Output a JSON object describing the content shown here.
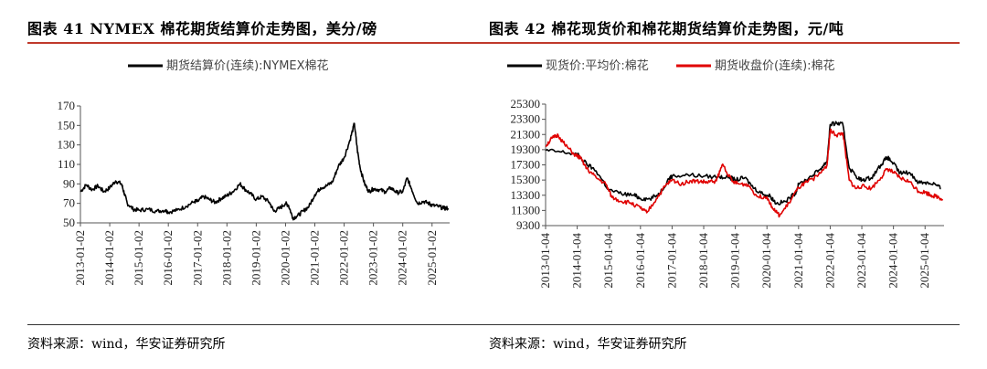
{
  "charts": [
    {
      "title": "图表 41 NYMEX 棉花期货结算价走势图，美分/磅",
      "source": "资料来源：wind，华安证券研究所"
    },
    {
      "title": "图表 42 棉花现货价和棉花期货结算价走势图，元/吨",
      "source": "资料来源：wind，华安证券研究所"
    }
  ],
  "chart_data": [
    {
      "type": "line",
      "title": "",
      "xlabel": "",
      "ylabel": "",
      "ylim": [
        50,
        170
      ],
      "yticks": [
        "170",
        "150",
        "130",
        "110",
        "90",
        "70",
        "50"
      ],
      "xticks": [
        "2013-01-02",
        "2014-01-02",
        "2015-01-02",
        "2016-01-02",
        "2017-01-02",
        "2018-01-02",
        "2019-01-02",
        "2020-01-02",
        "2021-01-02",
        "2022-01-02",
        "2023-01-02",
        "2024-01-02",
        "2025-01-02"
      ],
      "legend_position": "top",
      "series": [
        {
          "name": "期货结算价(连续):NYMEX棉花",
          "color": "#000000",
          "x": [
            2013.0,
            2013.2,
            2013.4,
            2013.6,
            2013.8,
            2014.0,
            2014.2,
            2014.4,
            2014.5,
            2014.6,
            2014.8,
            2015.0,
            2015.3,
            2015.6,
            2015.9,
            2016.0,
            2016.3,
            2016.6,
            2016.9,
            2017.0,
            2017.2,
            2017.4,
            2017.6,
            2017.8,
            2018.0,
            2018.2,
            2018.45,
            2018.6,
            2018.8,
            2019.0,
            2019.2,
            2019.45,
            2019.6,
            2019.8,
            2020.0,
            2020.1,
            2020.25,
            2020.4,
            2020.6,
            2020.8,
            2021.0,
            2021.2,
            2021.4,
            2021.6,
            2021.8,
            2022.0,
            2022.2,
            2022.35,
            2022.45,
            2022.55,
            2022.7,
            2022.85,
            2023.0,
            2023.2,
            2023.4,
            2023.6,
            2023.8,
            2024.0,
            2024.15,
            2024.3,
            2024.5,
            2024.7,
            2024.9,
            2025.0,
            2025.2,
            2025.4,
            2025.55
          ],
          "values": [
            82,
            89,
            84,
            88,
            82,
            86,
            93,
            90,
            80,
            70,
            64,
            63,
            64,
            62,
            63,
            61,
            63,
            67,
            72,
            72,
            77,
            74,
            71,
            75,
            78,
            82,
            90,
            85,
            80,
            74,
            77,
            71,
            62,
            65,
            70,
            68,
            55,
            57,
            62,
            67,
            79,
            86,
            88,
            92,
            108,
            117,
            135,
            152,
            125,
            106,
            90,
            82,
            85,
            84,
            82,
            86,
            81,
            82,
            96,
            85,
            70,
            72,
            70,
            68,
            67,
            65,
            65
          ]
        }
      ]
    },
    {
      "type": "line",
      "title": "",
      "xlabel": "",
      "ylabel": "",
      "ylim": [
        9300,
        25300
      ],
      "yticks": [
        "25300",
        "23300",
        "21300",
        "19300",
        "17300",
        "15300",
        "13300",
        "11300",
        "9300"
      ],
      "xticks": [
        "2013-01-04",
        "2014-01-04",
        "2015-01-04",
        "2016-01-04",
        "2017-01-04",
        "2018-01-04",
        "2019-01-04",
        "2020-01-04",
        "2021-01-04",
        "2022-01-04",
        "2023-01-04",
        "2024-01-04",
        "2025-01-04"
      ],
      "legend_position": "top",
      "series": [
        {
          "name": "现货价:平均价:棉花",
          "color": "#000000",
          "x": [
            2013.0,
            2013.5,
            2014.0,
            2014.3,
            2014.6,
            2015.0,
            2015.4,
            2015.8,
            2016.0,
            2016.3,
            2016.6,
            2016.9,
            2017.0,
            2017.5,
            2018.0,
            2018.5,
            2018.8,
            2019.0,
            2019.3,
            2019.6,
            2019.9,
            2020.1,
            2020.3,
            2020.6,
            2020.9,
            2021.0,
            2021.4,
            2021.7,
            2021.9,
            2022.0,
            2022.2,
            2022.4,
            2022.6,
            2022.9,
            2023.0,
            2023.3,
            2023.6,
            2023.8,
            2024.0,
            2024.2,
            2024.5,
            2024.8,
            2025.0,
            2025.3,
            2025.5
          ],
          "values": [
            19200,
            19000,
            18700,
            17400,
            16500,
            14000,
            13500,
            13300,
            12900,
            12800,
            13500,
            15500,
            15800,
            16000,
            15800,
            15700,
            15700,
            15300,
            15600,
            14200,
            13400,
            13200,
            12200,
            12500,
            13600,
            14700,
            15800,
            16800,
            17800,
            22600,
            22800,
            22600,
            16900,
            15500,
            15300,
            15600,
            17300,
            18300,
            17500,
            16200,
            16300,
            15000,
            15000,
            14800,
            14200
          ]
        },
        {
          "name": "期货收盘价(连续):棉花",
          "color": "#e00000",
          "x": [
            2013.0,
            2013.2,
            2013.4,
            2013.6,
            2013.9,
            2014.1,
            2014.3,
            2014.6,
            2014.9,
            2015.1,
            2015.4,
            2015.7,
            2016.0,
            2016.2,
            2016.5,
            2016.8,
            2017.0,
            2017.3,
            2017.6,
            2017.9,
            2018.1,
            2018.4,
            2018.6,
            2018.9,
            2019.1,
            2019.4,
            2019.7,
            2020.0,
            2020.2,
            2020.4,
            2020.7,
            2021.0,
            2021.3,
            2021.6,
            2021.9,
            2022.0,
            2022.2,
            2022.4,
            2022.6,
            2022.8,
            2023.0,
            2023.3,
            2023.6,
            2023.8,
            2024.0,
            2024.2,
            2024.5,
            2024.8,
            2025.0,
            2025.2,
            2025.4,
            2025.55
          ],
          "values": [
            19800,
            20800,
            21200,
            20000,
            18700,
            18200,
            16800,
            15600,
            14800,
            13000,
            12500,
            12300,
            11600,
            11000,
            12800,
            14600,
            15300,
            14800,
            15200,
            15100,
            15000,
            15200,
            17400,
            15100,
            14800,
            14700,
            13100,
            13100,
            11500,
            10600,
            12300,
            14300,
            15100,
            15800,
            17300,
            21800,
            21200,
            21500,
            15300,
            14200,
            14500,
            14200,
            15600,
            16800,
            16300,
            15600,
            15100,
            13800,
            13700,
            13300,
            13100,
            12800
          ]
        }
      ]
    }
  ]
}
